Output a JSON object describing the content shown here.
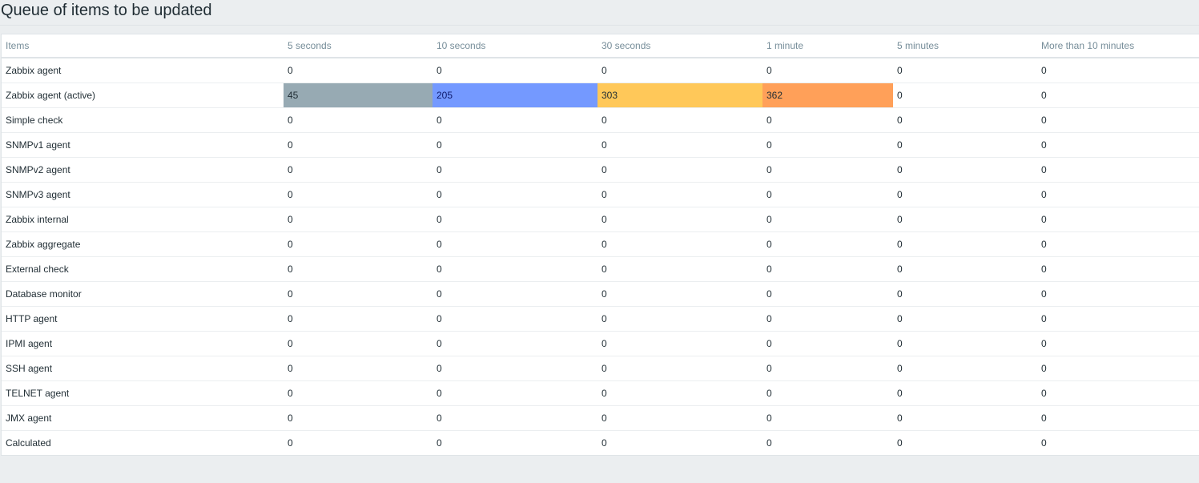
{
  "page": {
    "title": "Queue of items to be updated"
  },
  "table": {
    "columns": [
      "Items",
      "5 seconds",
      "10 seconds",
      "30 seconds",
      "1 minute",
      "5 minutes",
      "More than 10 minutes"
    ],
    "highlight_colors": {
      "gray": "#97aab3",
      "blue": "#7499ff",
      "yellow": "#ffc859",
      "orange": "#ffa059"
    },
    "rows": [
      {
        "name": "Zabbix agent",
        "values": [
          "0",
          "0",
          "0",
          "0",
          "0",
          "0"
        ],
        "highlight": [
          null,
          null,
          null,
          null,
          null,
          null
        ]
      },
      {
        "name": "Zabbix agent (active)",
        "values": [
          "45",
          "205",
          "303",
          "362",
          "0",
          "0"
        ],
        "highlight": [
          "gray",
          "blue",
          "yellow",
          "orange",
          null,
          null
        ]
      },
      {
        "name": "Simple check",
        "values": [
          "0",
          "0",
          "0",
          "0",
          "0",
          "0"
        ],
        "highlight": [
          null,
          null,
          null,
          null,
          null,
          null
        ]
      },
      {
        "name": "SNMPv1 agent",
        "values": [
          "0",
          "0",
          "0",
          "0",
          "0",
          "0"
        ],
        "highlight": [
          null,
          null,
          null,
          null,
          null,
          null
        ]
      },
      {
        "name": "SNMPv2 agent",
        "values": [
          "0",
          "0",
          "0",
          "0",
          "0",
          "0"
        ],
        "highlight": [
          null,
          null,
          null,
          null,
          null,
          null
        ]
      },
      {
        "name": "SNMPv3 agent",
        "values": [
          "0",
          "0",
          "0",
          "0",
          "0",
          "0"
        ],
        "highlight": [
          null,
          null,
          null,
          null,
          null,
          null
        ]
      },
      {
        "name": "Zabbix internal",
        "values": [
          "0",
          "0",
          "0",
          "0",
          "0",
          "0"
        ],
        "highlight": [
          null,
          null,
          null,
          null,
          null,
          null
        ]
      },
      {
        "name": "Zabbix aggregate",
        "values": [
          "0",
          "0",
          "0",
          "0",
          "0",
          "0"
        ],
        "highlight": [
          null,
          null,
          null,
          null,
          null,
          null
        ]
      },
      {
        "name": "External check",
        "values": [
          "0",
          "0",
          "0",
          "0",
          "0",
          "0"
        ],
        "highlight": [
          null,
          null,
          null,
          null,
          null,
          null
        ]
      },
      {
        "name": "Database monitor",
        "values": [
          "0",
          "0",
          "0",
          "0",
          "0",
          "0"
        ],
        "highlight": [
          null,
          null,
          null,
          null,
          null,
          null
        ]
      },
      {
        "name": "HTTP agent",
        "values": [
          "0",
          "0",
          "0",
          "0",
          "0",
          "0"
        ],
        "highlight": [
          null,
          null,
          null,
          null,
          null,
          null
        ]
      },
      {
        "name": "IPMI agent",
        "values": [
          "0",
          "0",
          "0",
          "0",
          "0",
          "0"
        ],
        "highlight": [
          null,
          null,
          null,
          null,
          null,
          null
        ]
      },
      {
        "name": "SSH agent",
        "values": [
          "0",
          "0",
          "0",
          "0",
          "0",
          "0"
        ],
        "highlight": [
          null,
          null,
          null,
          null,
          null,
          null
        ]
      },
      {
        "name": "TELNET agent",
        "values": [
          "0",
          "0",
          "0",
          "0",
          "0",
          "0"
        ],
        "highlight": [
          null,
          null,
          null,
          null,
          null,
          null
        ]
      },
      {
        "name": "JMX agent",
        "values": [
          "0",
          "0",
          "0",
          "0",
          "0",
          "0"
        ],
        "highlight": [
          null,
          null,
          null,
          null,
          null,
          null
        ]
      },
      {
        "name": "Calculated",
        "values": [
          "0",
          "0",
          "0",
          "0",
          "0",
          "0"
        ],
        "highlight": [
          null,
          null,
          null,
          null,
          null,
          null
        ]
      }
    ]
  }
}
